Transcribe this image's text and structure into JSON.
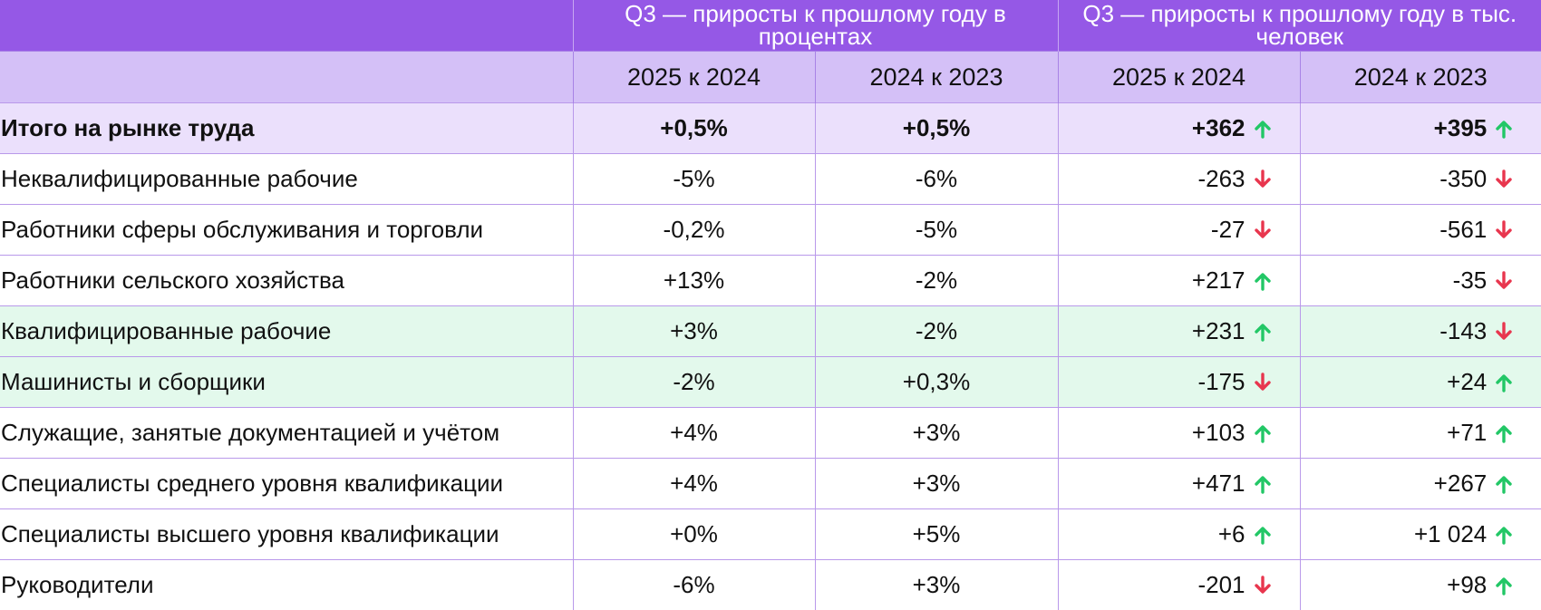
{
  "colors": {
    "header": "#9558e6",
    "subheader": "#d4c0f7",
    "total_row": "#ebe0fc",
    "highlight_row": "#e3f9ec",
    "up": "#22c766",
    "down": "#e8364e"
  },
  "header": {
    "group_pct": "Q3 — приросты к прошлому году в процентах",
    "group_thousand": "Q3 — приросты к прошлому году в тыс. человек",
    "sub": [
      "2025 к 2024",
      "2024 к 2023",
      "2025 к 2024",
      "2024 к 2023"
    ]
  },
  "chart_data": {
    "type": "table",
    "columns": [
      "",
      "2025 к 2024",
      "2024 к 2023",
      "2025 к 2024",
      "2024 к 2023"
    ],
    "rows": [
      {
        "label": "Итого на рынке труда",
        "pct_2025": "+0,5%",
        "pct_2024": "+0,5%",
        "th_2025": "+362",
        "th_2025_dir": "up",
        "th_2024": "+395",
        "th_2024_dir": "up",
        "style": "total"
      },
      {
        "label": "Неквалифицированные рабочие",
        "pct_2025": "-5%",
        "pct_2024": "-6%",
        "th_2025": "-263",
        "th_2025_dir": "down",
        "th_2024": "-350",
        "th_2024_dir": "down",
        "style": ""
      },
      {
        "label": "Работники сферы обслуживания и торговли",
        "pct_2025": "-0,2%",
        "pct_2024": "-5%",
        "th_2025": "-27",
        "th_2025_dir": "down",
        "th_2024": "-561",
        "th_2024_dir": "down",
        "style": ""
      },
      {
        "label": "Работники сельского хозяйства",
        "pct_2025": "+13%",
        "pct_2024": "-2%",
        "th_2025": "+217",
        "th_2025_dir": "up",
        "th_2024": "-35",
        "th_2024_dir": "down",
        "style": ""
      },
      {
        "label": "Квалифицированные рабочие",
        "pct_2025": "+3%",
        "pct_2024": "-2%",
        "th_2025": "+231",
        "th_2025_dir": "up",
        "th_2024": "-143",
        "th_2024_dir": "down",
        "style": "highlight"
      },
      {
        "label": "Машинисты и сборщики",
        "pct_2025": "-2%",
        "pct_2024": "+0,3%",
        "th_2025": "-175",
        "th_2025_dir": "down",
        "th_2024": "+24",
        "th_2024_dir": "up",
        "style": "highlight"
      },
      {
        "label": "Служащие, занятые документацией и учётом",
        "pct_2025": "+4%",
        "pct_2024": "+3%",
        "th_2025": "+103",
        "th_2025_dir": "up",
        "th_2024": "+71",
        "th_2024_dir": "up",
        "style": ""
      },
      {
        "label": "Специалисты среднего уровня квалификации",
        "pct_2025": "+4%",
        "pct_2024": "+3%",
        "th_2025": "+471",
        "th_2025_dir": "up",
        "th_2024": "+267",
        "th_2024_dir": "up",
        "style": ""
      },
      {
        "label": "Специалисты высшего уровня квалификации",
        "pct_2025": "+0%",
        "pct_2024": "+5%",
        "th_2025": "+6",
        "th_2025_dir": "up",
        "th_2024": "+1 024",
        "th_2024_dir": "up",
        "style": ""
      },
      {
        "label": "Руководители",
        "pct_2025": "-6%",
        "pct_2024": "+3%",
        "th_2025": "-201",
        "th_2025_dir": "down",
        "th_2024": "+98",
        "th_2024_dir": "up",
        "style": ""
      }
    ]
  }
}
